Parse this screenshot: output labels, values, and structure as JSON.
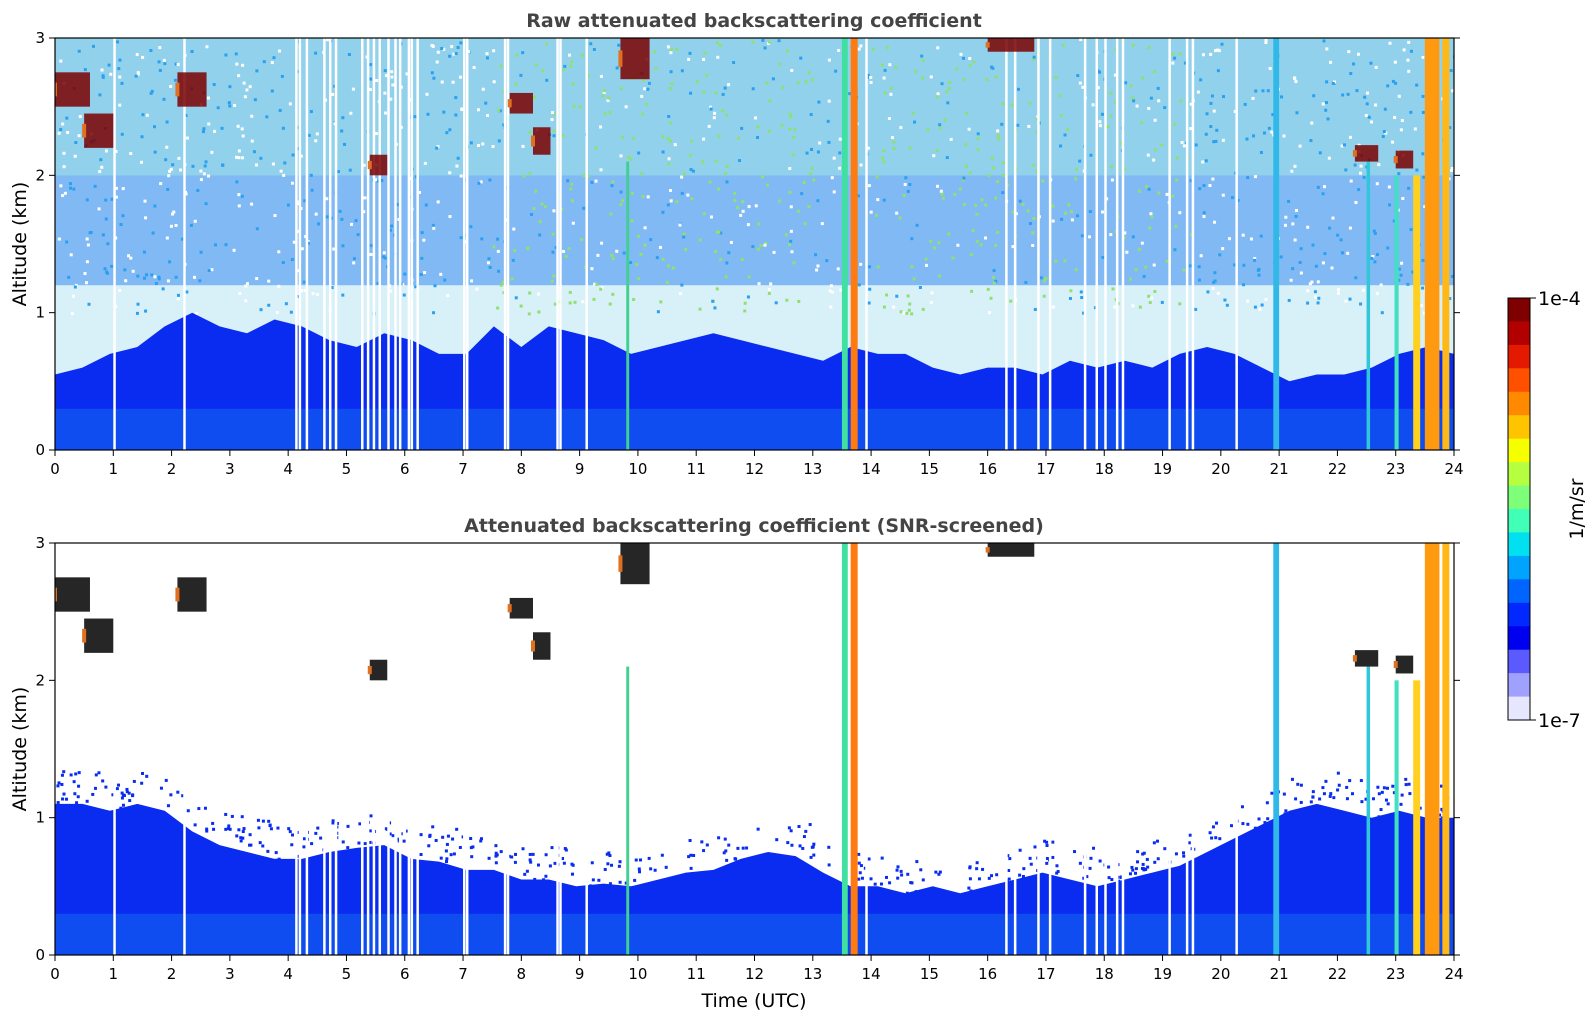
{
  "chart_data": [
    {
      "type": "heatmap",
      "title": "Raw attenuated backscattering coefficient",
      "xlabel": "",
      "ylabel": "Altitude (km)",
      "xlim": [
        0,
        24
      ],
      "ylim": [
        0,
        3
      ],
      "xticks": [
        "0",
        "1",
        "2",
        "3",
        "4",
        "5",
        "6",
        "7",
        "8",
        "9",
        "10",
        "11",
        "12",
        "13",
        "14",
        "15",
        "16",
        "17",
        "18",
        "19",
        "20",
        "21",
        "22",
        "23",
        "24"
      ],
      "yticks": [
        "0",
        "1",
        "2",
        "3"
      ],
      "screened": false,
      "blue_boundary_km": [
        0.55,
        0.6,
        0.7,
        0.75,
        0.9,
        1.0,
        0.9,
        0.85,
        0.95,
        0.9,
        0.8,
        0.75,
        0.85,
        0.8,
        0.7,
        0.7,
        0.9,
        0.75,
        0.9,
        0.85,
        0.8,
        0.7,
        0.75,
        0.8,
        0.85,
        0.8,
        0.75,
        0.7,
        0.65,
        0.75,
        0.7,
        0.7,
        0.6,
        0.55,
        0.6,
        0.6,
        0.55,
        0.65,
        0.6,
        0.65,
        0.6,
        0.7,
        0.75,
        0.7,
        0.6,
        0.5,
        0.55,
        0.55,
        0.6,
        0.7,
        0.75,
        0.7
      ]
    },
    {
      "type": "heatmap",
      "title": "Attenuated backscattering coefficient (SNR-screened)",
      "xlabel": "Time (UTC)",
      "ylabel": "Altitude (km)",
      "xlim": [
        0,
        24
      ],
      "ylim": [
        0,
        3
      ],
      "xticks": [
        "0",
        "1",
        "2",
        "3",
        "4",
        "5",
        "6",
        "7",
        "8",
        "9",
        "10",
        "11",
        "12",
        "13",
        "14",
        "15",
        "16",
        "17",
        "18",
        "19",
        "20",
        "21",
        "22",
        "23",
        "24"
      ],
      "yticks": [
        "0",
        "1",
        "2",
        "3"
      ],
      "screened": true,
      "blue_boundary_km": [
        1.1,
        1.1,
        1.05,
        1.1,
        1.05,
        0.9,
        0.8,
        0.75,
        0.7,
        0.7,
        0.75,
        0.78,
        0.8,
        0.7,
        0.68,
        0.62,
        0.62,
        0.55,
        0.55,
        0.5,
        0.52,
        0.5,
        0.55,
        0.6,
        0.62,
        0.7,
        0.75,
        0.72,
        0.6,
        0.5,
        0.5,
        0.45,
        0.5,
        0.45,
        0.5,
        0.55,
        0.6,
        0.55,
        0.5,
        0.55,
        0.6,
        0.65,
        0.75,
        0.85,
        0.95,
        1.05,
        1.1,
        1.05,
        1.0,
        1.05,
        1.0,
        1.0
      ]
    }
  ],
  "features": {
    "gaps_h": [
      1.0,
      2.2,
      4.12,
      4.18,
      4.3,
      4.6,
      4.7,
      4.8,
      5.25,
      5.35,
      5.45,
      5.55,
      5.7,
      5.82,
      5.9,
      6.05,
      6.1,
      6.2,
      7.0,
      7.05,
      7.7,
      7.75,
      8.6,
      8.65,
      9.1,
      13.9,
      16.3,
      16.45,
      16.85,
      17.05,
      17.65,
      17.85,
      18.0,
      18.2,
      18.3,
      19.1,
      19.4,
      19.5,
      20.25
    ],
    "plumes": [
      {
        "x": 9.8,
        "w": 0.05,
        "top": 2.1,
        "color": "#40d090"
      },
      {
        "x": 13.5,
        "w": 0.1,
        "top": 3.0,
        "color": "#40e0a0"
      },
      {
        "x": 13.65,
        "w": 0.12,
        "top": 3.0,
        "color": "#ff7a10"
      },
      {
        "x": 20.9,
        "w": 0.1,
        "top": 3.0,
        "color": "#30b8e8"
      },
      {
        "x": 22.5,
        "w": 0.06,
        "top": 2.1,
        "color": "#30c8d8"
      },
      {
        "x": 22.98,
        "w": 0.07,
        "top": 2.0,
        "color": "#40e0c0"
      },
      {
        "x": 23.3,
        "w": 0.12,
        "top": 2.0,
        "color": "#ffd020"
      },
      {
        "x": 23.5,
        "w": 0.25,
        "top": 3.0,
        "color": "#ff9a10"
      },
      {
        "x": 23.8,
        "w": 0.12,
        "top": 3.0,
        "color": "#ffb818"
      }
    ],
    "clouds": [
      {
        "x0": 0.0,
        "x1": 0.6,
        "y0": 2.5,
        "y1": 2.75
      },
      {
        "x0": 0.5,
        "x1": 1.0,
        "y0": 2.2,
        "y1": 2.45
      },
      {
        "x0": 2.1,
        "x1": 2.6,
        "y0": 2.5,
        "y1": 2.75
      },
      {
        "x0": 5.4,
        "x1": 5.7,
        "y0": 2.0,
        "y1": 2.15
      },
      {
        "x0": 7.8,
        "x1": 8.2,
        "y0": 2.45,
        "y1": 2.6
      },
      {
        "x0": 8.2,
        "x1": 8.5,
        "y0": 2.15,
        "y1": 2.35
      },
      {
        "x0": 9.7,
        "x1": 10.2,
        "y0": 2.7,
        "y1": 3.0
      },
      {
        "x0": 16.0,
        "x1": 16.8,
        "y0": 2.9,
        "y1": 3.0
      },
      {
        "x0": 22.3,
        "x1": 22.7,
        "y0": 2.1,
        "y1": 2.22
      },
      {
        "x0": 23.0,
        "x1": 23.3,
        "y0": 2.05,
        "y1": 2.18
      }
    ]
  },
  "colorbar": {
    "max_label": "1e-4",
    "min_label": "1e-7",
    "unit_label": "1/m/sr",
    "colors": [
      "#7f0000",
      "#b20000",
      "#e41a00",
      "#ff5000",
      "#ff8a00",
      "#ffc400",
      "#f5ff00",
      "#b6ff40",
      "#7dff7a",
      "#40ffb6",
      "#00e0f0",
      "#00a4ff",
      "#0064ff",
      "#0028ff",
      "#0000f0",
      "#5a5aff",
      "#a0a0ff",
      "#e6e6ff"
    ]
  },
  "colors": {
    "sky_blue": "#0a2cf0",
    "near_ground": "#1a8cf0",
    "noise_mid": "#2aa0f0",
    "noise_hi": "#90e070",
    "cloud_core": "#7a0000",
    "cloud_edge": "#e07020",
    "screened_cloud": "#000000"
  }
}
